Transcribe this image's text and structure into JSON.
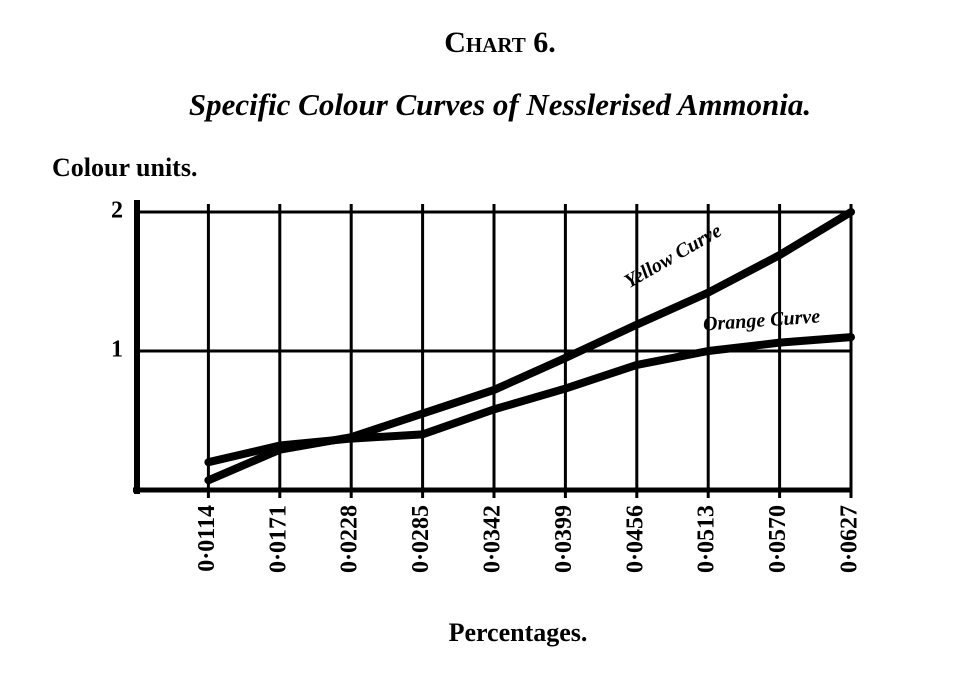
{
  "chart_data": {
    "type": "line",
    "title": "Chart 6.",
    "subtitle": "Specific Colour Curves of Nesslerised Ammonia.",
    "y_label": "Colour units.",
    "x_label": "Percentages.",
    "x": [
      0.0114,
      0.0171,
      0.0228,
      0.0285,
      0.0342,
      0.0399,
      0.0456,
      0.0513,
      0.057,
      0.0627
    ],
    "series": [
      {
        "name": "Yellow Curve",
        "color": "#000000",
        "values": [
          0.07,
          0.29,
          0.38,
          0.55,
          0.72,
          0.95,
          1.19,
          1.42,
          1.69,
          2.0
        ]
      },
      {
        "name": "Orange Curve",
        "color": "#000000",
        "values": [
          0.2,
          0.32,
          0.37,
          0.4,
          0.58,
          0.73,
          0.9,
          1.0,
          1.06,
          1.1
        ]
      }
    ],
    "xlim": [
      0.0057,
      0.0627
    ],
    "ylim": [
      0,
      2
    ],
    "xticks": [
      {
        "value": 0.0114,
        "label": "0·0114"
      },
      {
        "value": 0.0171,
        "label": "0·0171"
      },
      {
        "value": 0.0228,
        "label": "0·0228"
      },
      {
        "value": 0.0285,
        "label": "0·0285"
      },
      {
        "value": 0.0342,
        "label": "0·0342"
      },
      {
        "value": 0.0399,
        "label": "0·0399"
      },
      {
        "value": 0.0456,
        "label": "0·0456"
      },
      {
        "value": 0.0513,
        "label": "0·0513"
      },
      {
        "value": 0.057,
        "label": "0·0570"
      },
      {
        "value": 0.0627,
        "label": "0·0627"
      }
    ],
    "yticks": [
      1,
      2
    ],
    "grid": true
  }
}
